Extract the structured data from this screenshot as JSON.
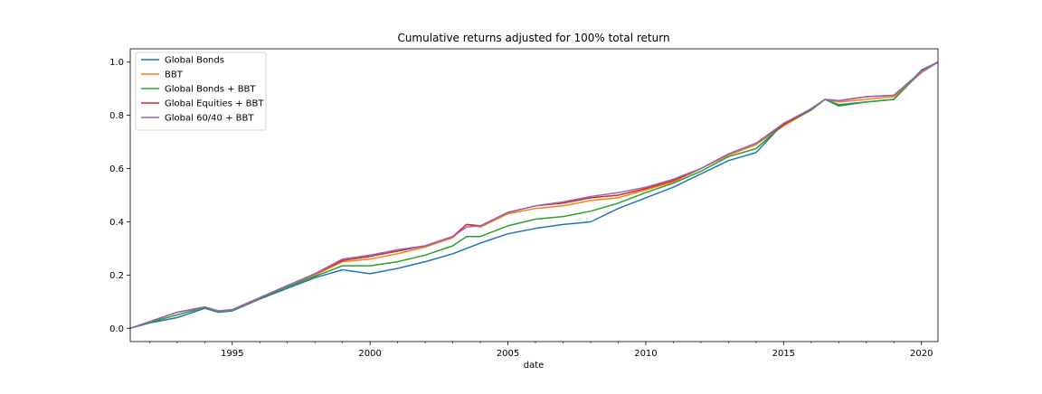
{
  "chart_data": {
    "type": "line",
    "title": "Cumulative returns adjusted for 100% total return",
    "xlabel": "date",
    "ylabel": "",
    "xlim": [
      1991.3,
      2020.6
    ],
    "ylim": [
      -0.05,
      1.05
    ],
    "x_ticks": [
      1995,
      2000,
      2005,
      2010,
      2015,
      2020
    ],
    "x_tick_labels": [
      "1995",
      "2000",
      "2005",
      "2010",
      "2015",
      "2020"
    ],
    "y_ticks": [
      0.0,
      0.2,
      0.4,
      0.6,
      0.8,
      1.0
    ],
    "y_tick_labels": [
      "0.0",
      "0.2",
      "0.4",
      "0.6",
      "0.8",
      "1.0"
    ],
    "grid": false,
    "legend_position": "top-left",
    "x": [
      1991.3,
      1992.0,
      1993.0,
      1994.0,
      1994.5,
      1995.0,
      1996.0,
      1997.0,
      1998.0,
      1999.0,
      2000.0,
      2001.0,
      2002.0,
      2003.0,
      2003.5,
      2004.0,
      2005.0,
      2006.0,
      2007.0,
      2008.0,
      2009.0,
      2010.0,
      2011.0,
      2012.0,
      2013.0,
      2014.0,
      2015.0,
      2016.0,
      2016.5,
      2017.0,
      2018.0,
      2019.0,
      2020.0,
      2020.6
    ],
    "series": [
      {
        "name": "Global Bonds",
        "color": "#1f77b4",
        "values": [
          0.0,
          0.02,
          0.04,
          0.075,
          0.06,
          0.065,
          0.11,
          0.15,
          0.19,
          0.22,
          0.205,
          0.225,
          0.25,
          0.28,
          0.3,
          0.32,
          0.355,
          0.375,
          0.39,
          0.4,
          0.45,
          0.49,
          0.53,
          0.58,
          0.63,
          0.66,
          0.77,
          0.82,
          0.86,
          0.84,
          0.85,
          0.86,
          0.97,
          1.0
        ]
      },
      {
        "name": "BBT",
        "color": "#ff7f0e",
        "values": [
          0.0,
          0.025,
          0.06,
          0.08,
          0.065,
          0.07,
          0.115,
          0.16,
          0.2,
          0.25,
          0.26,
          0.28,
          0.305,
          0.34,
          0.39,
          0.38,
          0.43,
          0.45,
          0.46,
          0.48,
          0.49,
          0.52,
          0.55,
          0.6,
          0.65,
          0.69,
          0.76,
          0.82,
          0.86,
          0.85,
          0.86,
          0.87,
          0.96,
          1.0
        ]
      },
      {
        "name": "Global Bonds + BBT",
        "color": "#2ca02c",
        "values": [
          0.0,
          0.022,
          0.05,
          0.078,
          0.062,
          0.067,
          0.112,
          0.155,
          0.195,
          0.235,
          0.235,
          0.25,
          0.275,
          0.31,
          0.345,
          0.345,
          0.385,
          0.41,
          0.42,
          0.44,
          0.47,
          0.51,
          0.545,
          0.59,
          0.645,
          0.675,
          0.765,
          0.82,
          0.86,
          0.835,
          0.85,
          0.86,
          0.965,
          1.0
        ]
      },
      {
        "name": "Global Equities + BBT",
        "color": "#d62728",
        "values": [
          0.0,
          0.025,
          0.06,
          0.08,
          0.065,
          0.07,
          0.115,
          0.16,
          0.205,
          0.255,
          0.27,
          0.29,
          0.31,
          0.345,
          0.39,
          0.385,
          0.435,
          0.46,
          0.47,
          0.49,
          0.5,
          0.525,
          0.555,
          0.6,
          0.655,
          0.695,
          0.765,
          0.825,
          0.86,
          0.855,
          0.87,
          0.875,
          0.965,
          1.0
        ]
      },
      {
        "name": "Global 60/40 + BBT",
        "color": "#9467bd",
        "values": [
          0.0,
          0.025,
          0.06,
          0.08,
          0.065,
          0.07,
          0.115,
          0.16,
          0.205,
          0.26,
          0.275,
          0.295,
          0.31,
          0.345,
          0.38,
          0.385,
          0.435,
          0.46,
          0.475,
          0.495,
          0.51,
          0.53,
          0.56,
          0.6,
          0.655,
          0.695,
          0.77,
          0.825,
          0.86,
          0.855,
          0.87,
          0.875,
          0.965,
          1.0
        ]
      }
    ]
  }
}
